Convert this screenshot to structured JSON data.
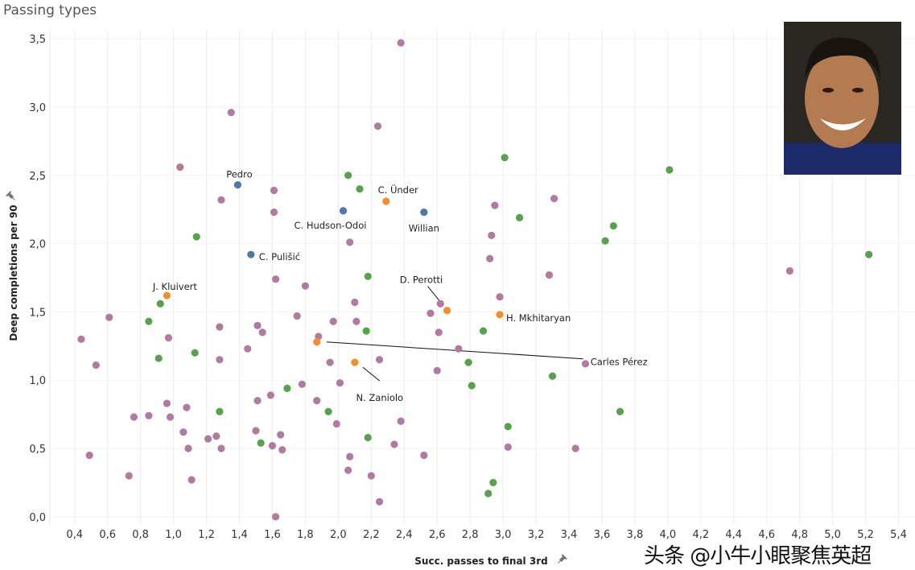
{
  "title": "Passing types",
  "watermark": "头条 @小牛小眼聚焦英超",
  "colors": {
    "other": "#b07aa1",
    "green": "#59a14f",
    "blue": "#4e79a7",
    "orange": "#f28e2b",
    "grid": "#ececec"
  },
  "chart_data": {
    "type": "scatter",
    "title": "Passing types",
    "xlabel": "Succ. passes to final 3rd",
    "ylabel": "Deep completions per 90",
    "xlim": [
      0.25,
      5.5
    ],
    "ylim": [
      -0.06,
      3.56
    ],
    "xticks": [
      "0,4",
      "0,6",
      "0,8",
      "1,0",
      "1,2",
      "1,4",
      "1,6",
      "1,8",
      "2,0",
      "2,2",
      "2,4",
      "2,6",
      "2,8",
      "3,0",
      "3,2",
      "3,4",
      "3,6",
      "3,8",
      "4,0",
      "4,2",
      "4,4",
      "4,6",
      "4,8",
      "5,0",
      "5,2",
      "5,4"
    ],
    "xtick_values": [
      0.4,
      0.6,
      0.8,
      1.0,
      1.2,
      1.4,
      1.6,
      1.8,
      2.0,
      2.2,
      2.4,
      2.6,
      2.8,
      3.0,
      3.2,
      3.4,
      3.6,
      3.8,
      4.0,
      4.2,
      4.4,
      4.6,
      4.8,
      5.0,
      5.2,
      5.4
    ],
    "yticks": [
      "0,0",
      "0,5",
      "1,0",
      "1,5",
      "2,0",
      "2,5",
      "3,0",
      "3,5"
    ],
    "ytick_values": [
      0,
      0.5,
      1.0,
      1.5,
      2.0,
      2.5,
      3.0,
      3.5
    ],
    "grid": true,
    "series": [
      {
        "name": "other",
        "color": "#b07aa1",
        "points": [
          [
            2.38,
            3.47
          ],
          [
            1.35,
            2.96
          ],
          [
            2.24,
            2.86
          ],
          [
            1.04,
            2.56
          ],
          [
            1.29,
            2.32
          ],
          [
            1.61,
            2.39
          ],
          [
            1.61,
            2.23
          ],
          [
            2.07,
            2.01
          ],
          [
            1.62,
            1.74
          ],
          [
            1.8,
            1.69
          ],
          [
            0.61,
            1.46
          ],
          [
            0.44,
            1.3
          ],
          [
            0.53,
            1.11
          ],
          [
            0.97,
            1.31
          ],
          [
            1.28,
            1.39
          ],
          [
            1.51,
            1.4
          ],
          [
            1.54,
            1.35
          ],
          [
            1.75,
            1.47
          ],
          [
            1.45,
            1.23
          ],
          [
            1.28,
            1.15
          ],
          [
            1.88,
            1.32
          ],
          [
            1.97,
            1.43
          ],
          [
            2.1,
            1.57
          ],
          [
            2.11,
            1.43
          ],
          [
            1.95,
            1.13
          ],
          [
            2.25,
            1.15
          ],
          [
            2.01,
            0.98
          ],
          [
            1.78,
            0.97
          ],
          [
            1.59,
            0.89
          ],
          [
            1.51,
            0.85
          ],
          [
            1.87,
            0.85
          ],
          [
            0.96,
            0.83
          ],
          [
            1.08,
            0.8
          ],
          [
            0.76,
            0.73
          ],
          [
            0.85,
            0.74
          ],
          [
            0.98,
            0.73
          ],
          [
            1.06,
            0.62
          ],
          [
            1.26,
            0.59
          ],
          [
            1.21,
            0.57
          ],
          [
            1.09,
            0.5
          ],
          [
            1.29,
            0.5
          ],
          [
            1.5,
            0.63
          ],
          [
            1.65,
            0.6
          ],
          [
            1.6,
            0.52
          ],
          [
            1.66,
            0.49
          ],
          [
            1.99,
            0.68
          ],
          [
            2.07,
            0.44
          ],
          [
            2.06,
            0.34
          ],
          [
            2.2,
            0.3
          ],
          [
            2.25,
            0.11
          ],
          [
            1.62,
            0.0
          ],
          [
            2.38,
            0.7
          ],
          [
            2.34,
            0.53
          ],
          [
            2.52,
            0.45
          ],
          [
            0.49,
            0.45
          ],
          [
            0.73,
            0.3
          ],
          [
            1.11,
            0.27
          ],
          [
            2.56,
            1.49
          ],
          [
            2.62,
            1.56
          ],
          [
            2.61,
            1.35
          ],
          [
            2.73,
            1.23
          ],
          [
            2.6,
            1.07
          ],
          [
            2.95,
            2.28
          ],
          [
            2.93,
            2.06
          ],
          [
            2.92,
            1.89
          ],
          [
            2.98,
            1.61
          ],
          [
            3.31,
            2.33
          ],
          [
            3.28,
            1.77
          ],
          [
            3.5,
            1.12
          ],
          [
            3.03,
            0.51
          ],
          [
            3.44,
            0.5
          ],
          [
            4.74,
            1.8
          ]
        ]
      },
      {
        "name": "green",
        "color": "#59a14f",
        "points": [
          [
            3.01,
            2.63
          ],
          [
            4.01,
            2.54
          ],
          [
            2.06,
            2.5
          ],
          [
            2.13,
            2.4
          ],
          [
            1.14,
            2.05
          ],
          [
            3.1,
            2.19
          ],
          [
            3.67,
            2.13
          ],
          [
            3.62,
            2.02
          ],
          [
            5.22,
            1.92
          ],
          [
            2.18,
            1.76
          ],
          [
            0.92,
            1.56
          ],
          [
            0.85,
            1.43
          ],
          [
            1.13,
            1.2
          ],
          [
            0.91,
            1.16
          ],
          [
            2.17,
            1.36
          ],
          [
            2.88,
            1.36
          ],
          [
            2.79,
            1.13
          ],
          [
            2.81,
            0.96
          ],
          [
            3.3,
            1.03
          ],
          [
            1.69,
            0.94
          ],
          [
            1.28,
            0.77
          ],
          [
            1.94,
            0.77
          ],
          [
            3.03,
            0.66
          ],
          [
            3.71,
            0.77
          ],
          [
            1.53,
            0.54
          ],
          [
            2.18,
            0.58
          ],
          [
            2.94,
            0.25
          ],
          [
            2.91,
            0.17
          ]
        ]
      },
      {
        "name": "blue",
        "color": "#4e79a7",
        "points": [
          [
            1.39,
            2.43,
            "Pedro"
          ],
          [
            2.03,
            2.24,
            "C. Hudson-Odoi"
          ],
          [
            2.52,
            2.23,
            "Willian"
          ],
          [
            1.47,
            1.92,
            "C. Pulišić"
          ]
        ]
      },
      {
        "name": "orange",
        "color": "#f28e2b",
        "points": [
          [
            2.29,
            2.31,
            "C. Ünder"
          ],
          [
            0.96,
            1.62,
            "J. Kluivert"
          ],
          [
            2.66,
            1.51,
            "D. Perotti"
          ],
          [
            2.98,
            1.48,
            "H. Mkhitaryan"
          ],
          [
            1.87,
            1.28,
            "Carles Pérez"
          ],
          [
            2.1,
            1.13,
            "N. Zaniolo"
          ]
        ]
      }
    ]
  }
}
